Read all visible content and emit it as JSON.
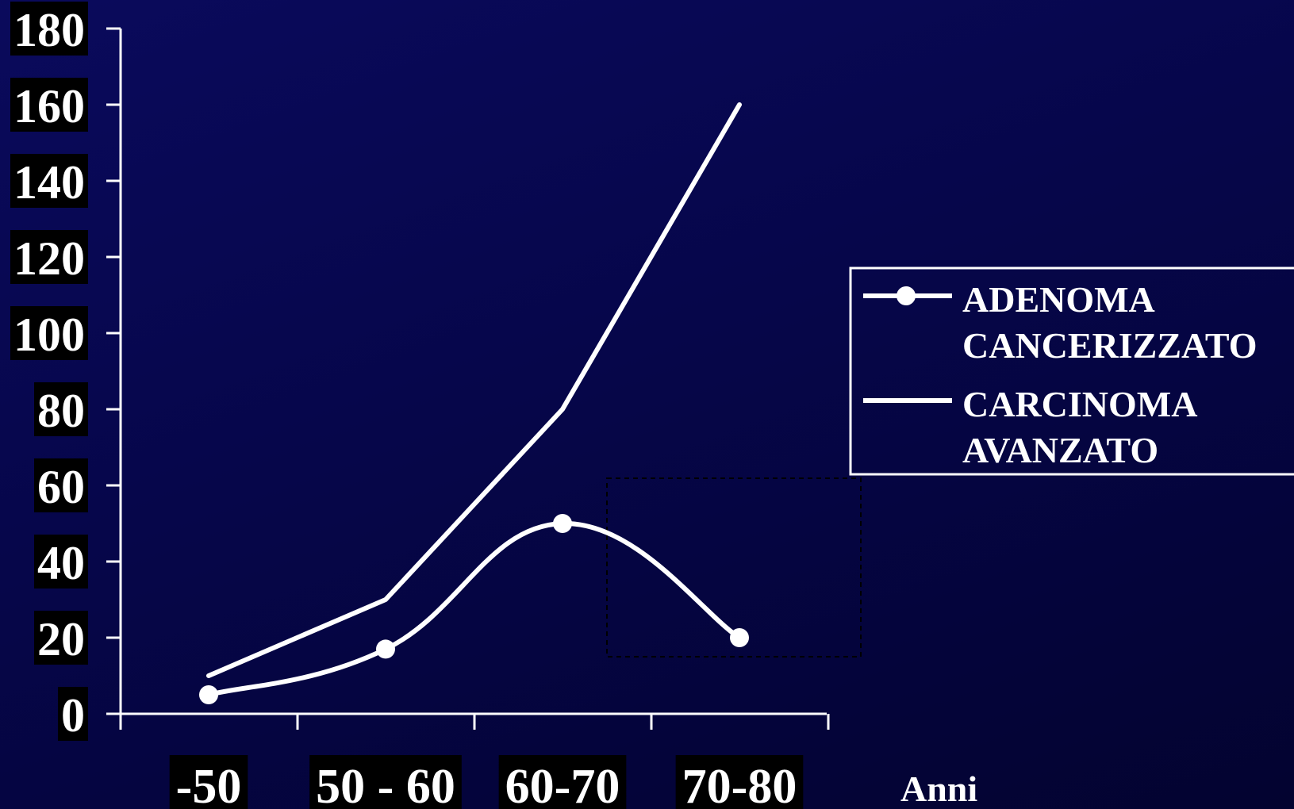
{
  "chart_data": {
    "type": "line",
    "title": "",
    "xlabel": "Anni",
    "ylabel": "",
    "ylim": [
      0,
      180
    ],
    "yticks": [
      "0",
      "20",
      "40",
      "60",
      "80",
      "100",
      "120",
      "140",
      "160",
      "180"
    ],
    "categories": [
      "-50",
      "50 - 60",
      "60-70",
      "70-80"
    ],
    "grid": false,
    "legend_position": "right",
    "series": [
      {
        "name": "ADENOMA CANCERIZZATO",
        "legend_lines": [
          "ADENOMA",
          "CANCERIZZATO"
        ],
        "values": [
          5,
          17,
          50,
          20
        ],
        "markers": true,
        "smooth": true,
        "color": "#ffffff"
      },
      {
        "name": "CARCINOMA AVANZATO",
        "legend_lines": [
          "CARCINOMA",
          "AVANZATO"
        ],
        "values": [
          10,
          30,
          80,
          160
        ],
        "markers": false,
        "smooth": false,
        "color": "#ffffff"
      }
    ],
    "colors": {
      "label_box": "#000000",
      "text": "#ffffff",
      "axis": "#ffffff"
    }
  }
}
